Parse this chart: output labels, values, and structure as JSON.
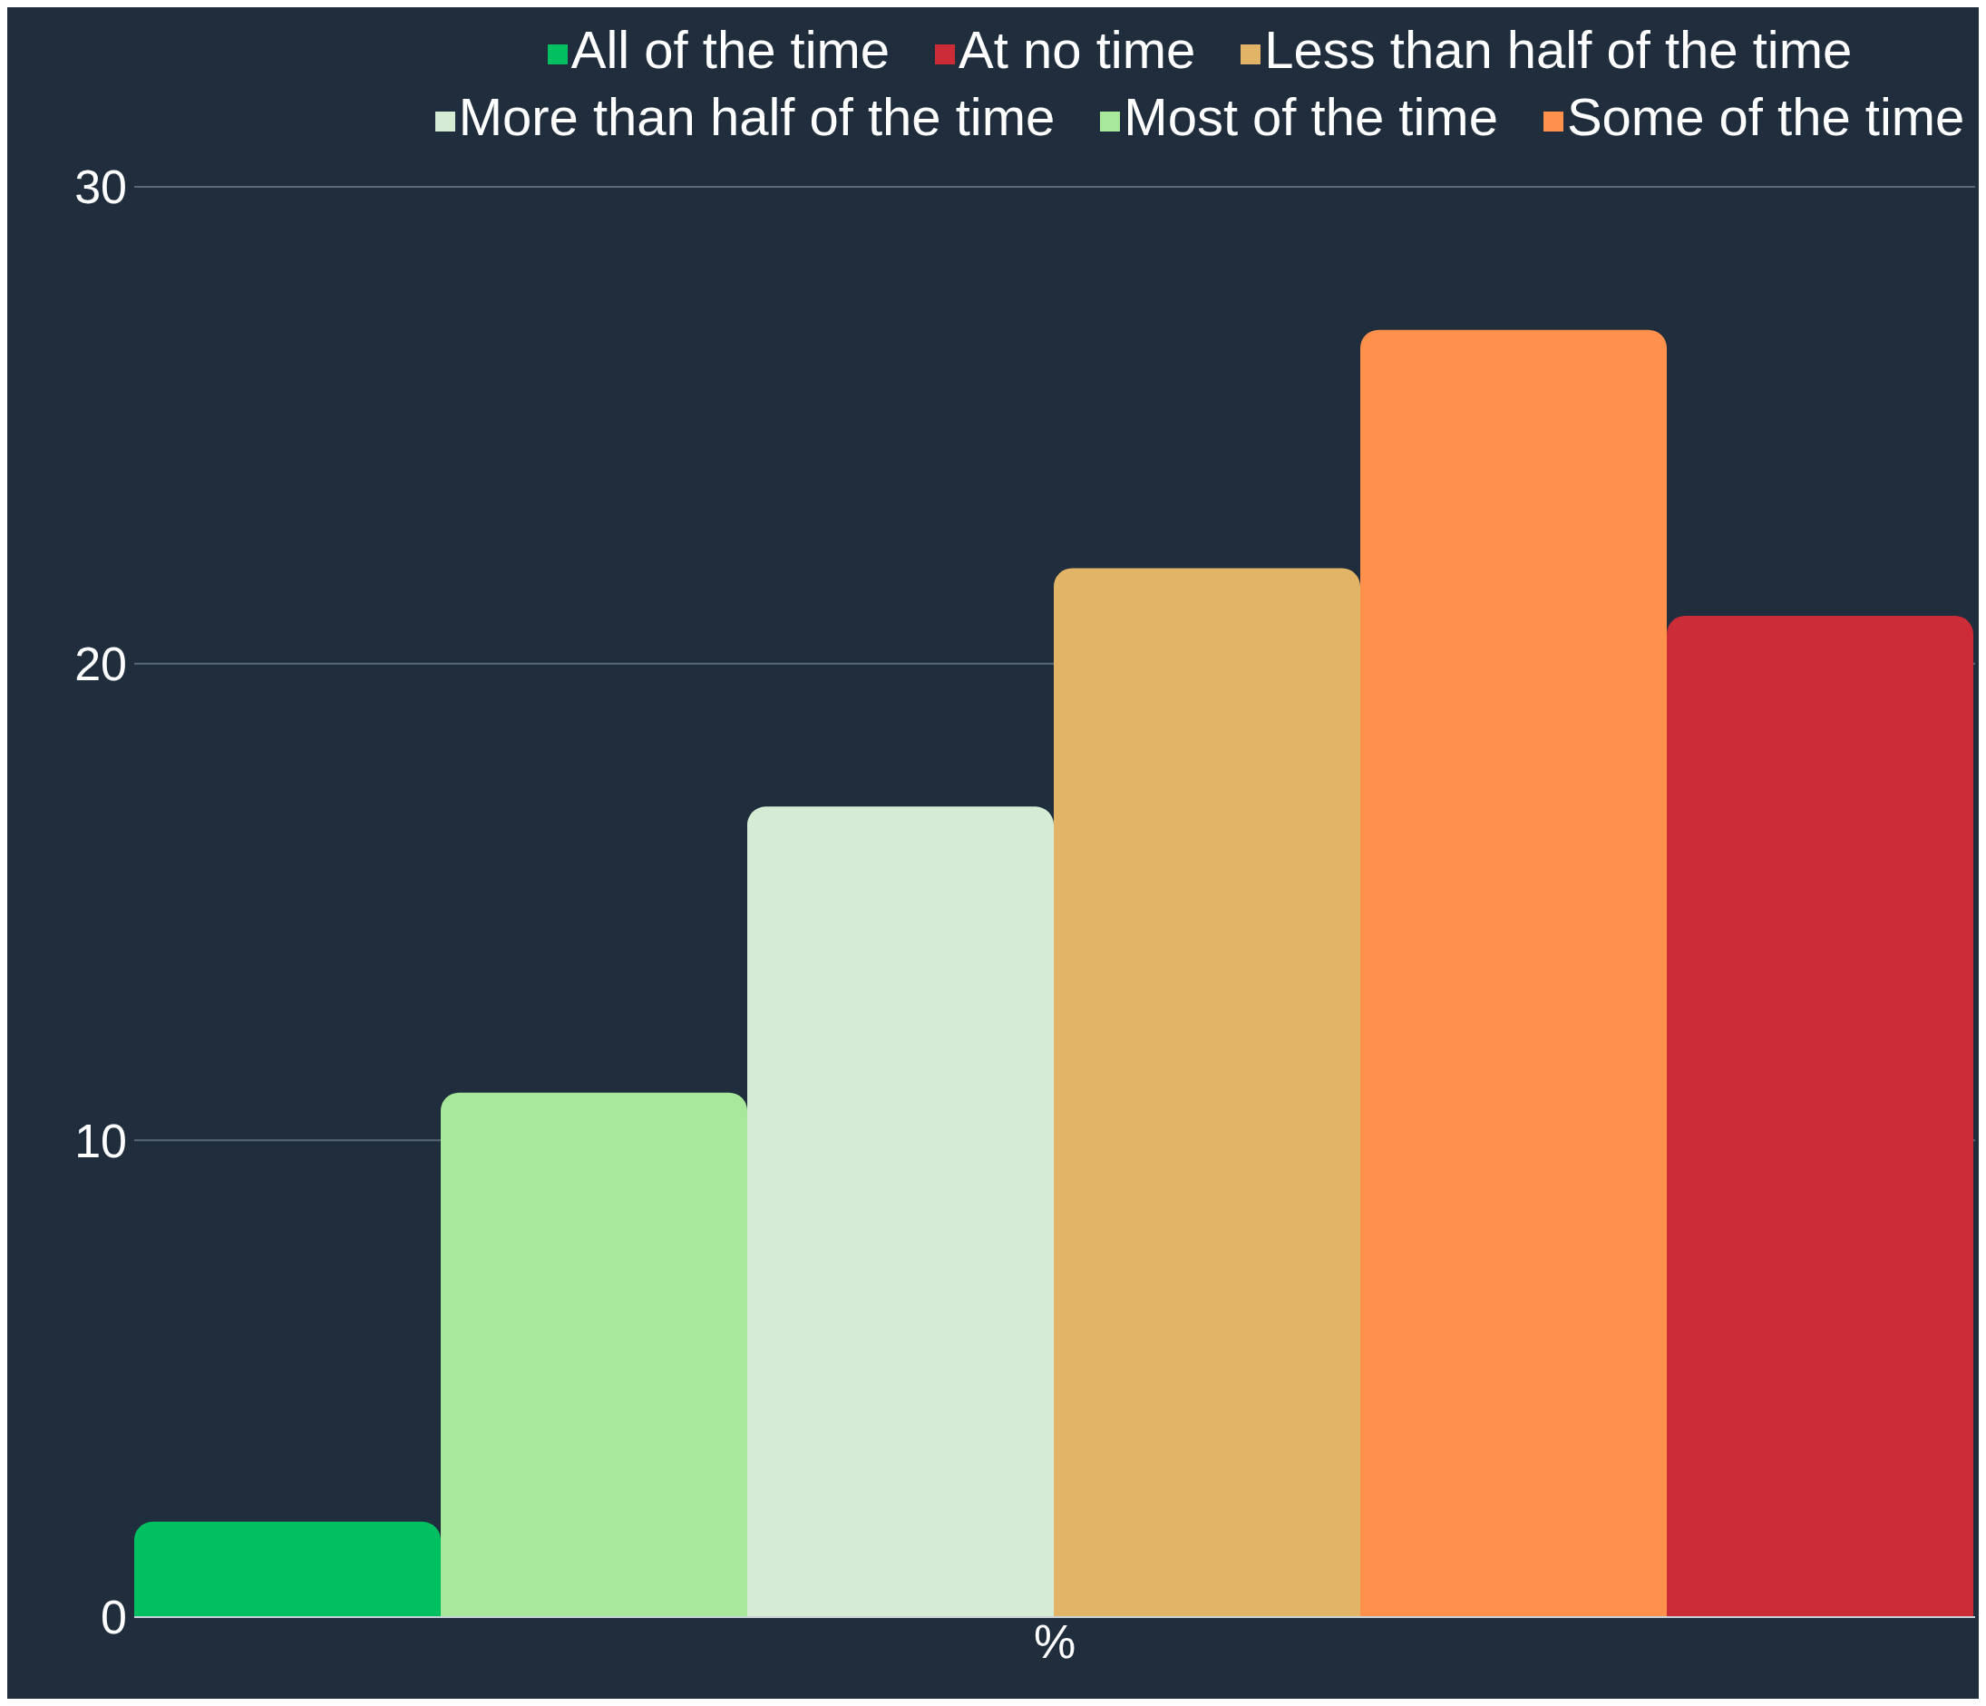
{
  "chart_data": {
    "type": "bar",
    "categories": [
      "%"
    ],
    "series": [
      {
        "name": "All of the time",
        "color": "#00c062",
        "values": [
          2
        ]
      },
      {
        "name": "Most of the time",
        "color": "#a8e89a",
        "values": [
          11
        ]
      },
      {
        "name": "More than half of the time",
        "color": "#d5ebd4",
        "values": [
          17
        ]
      },
      {
        "name": "Less than half of the time",
        "color": "#e1b468",
        "values": [
          22
        ]
      },
      {
        "name": "Some of the time",
        "color": "#ff914d",
        "values": [
          27
        ]
      },
      {
        "name": "At no time",
        "color": "#cb2c37",
        "values": [
          21
        ]
      }
    ],
    "ylim": [
      0,
      30
    ],
    "yticks": [
      0,
      10,
      20,
      30
    ],
    "grid": "y",
    "legend": "top"
  }
}
